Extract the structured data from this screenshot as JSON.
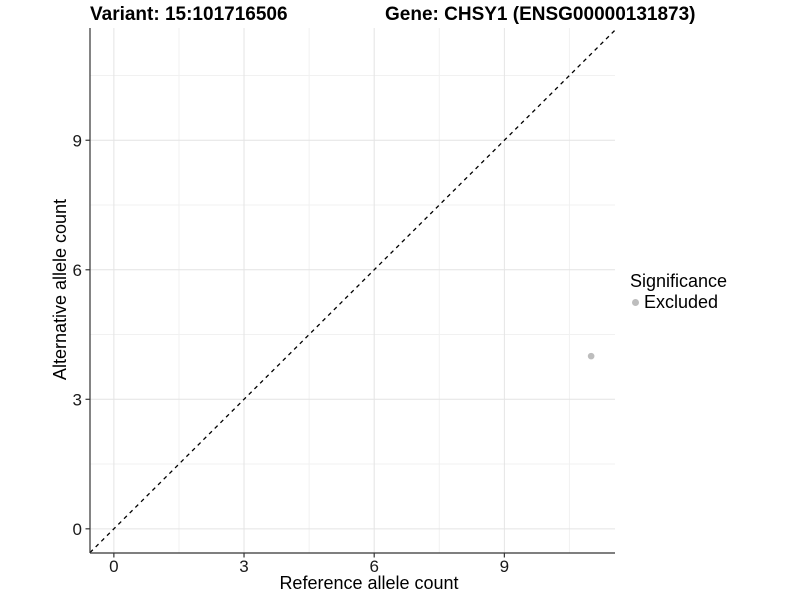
{
  "titles": {
    "variant": "Variant: 15:101716506",
    "gene": "Gene: CHSY1 (ENSG00000131873)"
  },
  "legend": {
    "title": "Significance",
    "items": [
      {
        "label": "Excluded",
        "color": "#bdbdbd",
        "swatch": "dot-icon"
      }
    ]
  },
  "chart_data": {
    "type": "scatter",
    "title": "Variant: 15:101716506",
    "subtitle": "Gene: CHSY1 (ENSG00000131873)",
    "xlabel": "Reference allele count",
    "ylabel": "Alternative allele count",
    "xlim": [
      -0.55,
      11.55
    ],
    "ylim": [
      -0.56,
      11.6
    ],
    "x_ticks": [
      0,
      3,
      6,
      9
    ],
    "y_ticks": [
      0,
      3,
      6,
      9
    ],
    "x_minor_ticks": [
      1.5,
      4.5,
      7.5,
      10.5
    ],
    "y_minor_ticks": [
      1.5,
      4.5,
      7.5,
      10.5
    ],
    "grid": true,
    "legend_position": "right",
    "legend_title": "Significance",
    "series": [
      {
        "name": "Excluded",
        "color": "#bdbdbd",
        "point_radius": 3.3,
        "points": [
          {
            "x": 11,
            "y": 4
          }
        ]
      }
    ],
    "reference_line": {
      "type": "identity",
      "slope": 1,
      "intercept": 0,
      "linetype": "dashed",
      "color": "#000000"
    },
    "colors": {
      "grid_major": "#e4e4e4",
      "grid_minor": "#f1f1f1",
      "axis": "#333333",
      "tick_text": "#1a1a1a",
      "panel_background": "#ffffff"
    }
  }
}
